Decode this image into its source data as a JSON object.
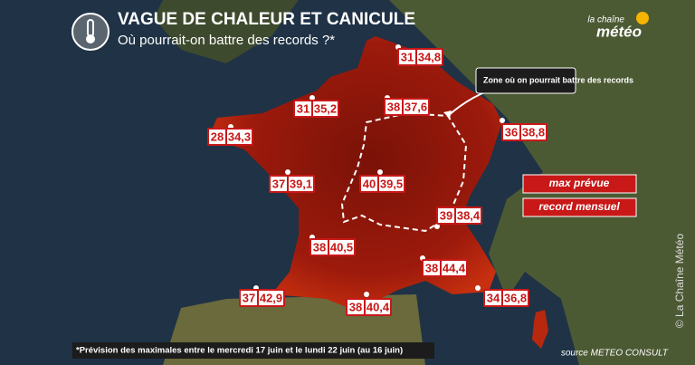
{
  "header": {
    "title": "VAGUE DE CHALEUR ET CANICULE",
    "subtitle": "Où pourrait-on battre des records ?*"
  },
  "logo": {
    "line1": "la chaîne",
    "line2": "météo"
  },
  "annotation": "Zone où on pourrait battre des records",
  "legend": {
    "max": "max prévue",
    "record": "record mensuel"
  },
  "stations": [
    {
      "max": "31",
      "record": "34,8"
    },
    {
      "max": "31",
      "record": "35,2"
    },
    {
      "max": "28",
      "record": "34,3"
    },
    {
      "max": "38",
      "record": "37,6"
    },
    {
      "max": "36",
      "record": "38,8"
    },
    {
      "max": "37",
      "record": "39,1"
    },
    {
      "max": "40",
      "record": "39,5"
    },
    {
      "max": "39",
      "record": "38,4"
    },
    {
      "max": "38",
      "record": "40,5"
    },
    {
      "max": "38",
      "record": "44,4"
    },
    {
      "max": "37",
      "record": "42,9"
    },
    {
      "max": "38",
      "record": "40,4"
    },
    {
      "max": "34",
      "record": "36,8"
    }
  ],
  "footnote": "*Prévision des maximales entre le mercredi 17 juin et le lundi 22 juin (au 16 juin)",
  "source": "source METEO CONSULT",
  "watermark": "© La Chaîne Météo"
}
